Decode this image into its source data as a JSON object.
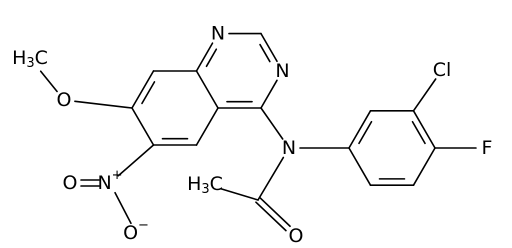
{
  "atoms": [
    {
      "label": "N"
    },
    {
      "label": "N"
    },
    {
      "label": "N"
    },
    {
      "label": "O"
    },
    {
      "label": [
        "H",
        "3",
        "C"
      ]
    },
    {
      "label": "N",
      "charge": "+"
    },
    {
      "label": "O"
    },
    {
      "label": "O",
      "charge": "−"
    },
    {
      "label": [
        "H",
        "3",
        "C"
      ]
    },
    {
      "label": "O"
    },
    {
      "label": "Cl"
    },
    {
      "label": "F"
    }
  ]
}
